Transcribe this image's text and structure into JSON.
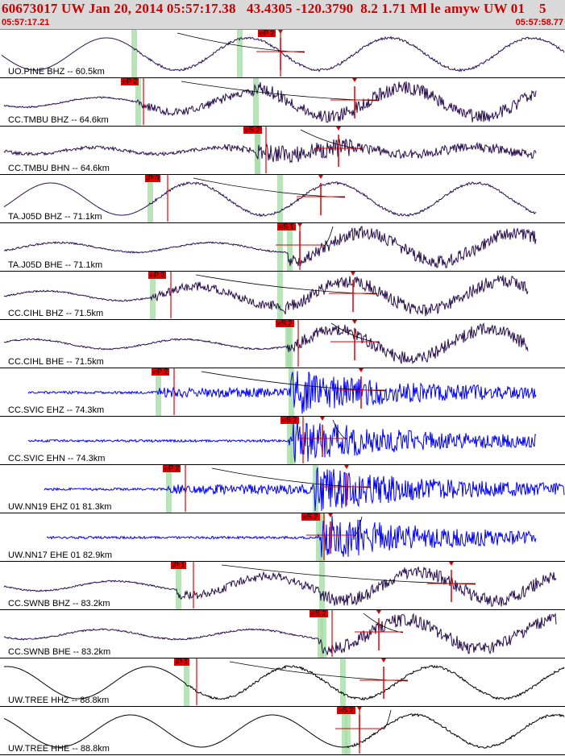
{
  "header": {
    "title": "60673017 UW Jan 20, 2014 05:57:17.38   43.4305 -120.3790  8.2 1.71 Ml le amyw UW 01    5",
    "time_start": "05:57:17.21",
    "time_end": "05:57:58.77"
  },
  "colors": {
    "header_bg": "#d9d9d9",
    "title": "#cc0000",
    "trace_dark": "#2a1050",
    "trace_blue": "#0000ff",
    "trace_black": "#000000",
    "pick": "#e00000",
    "green_band": "#a8dca8"
  },
  "traces": [
    {
      "label": "UO.PINE BHZ -- 60.5km",
      "pick": "eP 2",
      "kind": "long",
      "color": "dark"
    },
    {
      "label": "CC.TMBU BHZ -- 64.6km",
      "pick": "eP 2",
      "kind": "mixed",
      "color": "dark"
    },
    {
      "label": "CC.TMBU BHN -- 64.6km",
      "pick": "eS 2",
      "kind": "noise",
      "color": "dark"
    },
    {
      "label": "TA.J05D BHZ -- 71.1km",
      "pick": "iP 0",
      "kind": "long",
      "color": "dark"
    },
    {
      "label": "TA.J05D BHE -- 71.1km",
      "pick": "eS 1",
      "kind": "mixed",
      "color": "dark"
    },
    {
      "label": "CC.CIHL BHZ -- 71.5km",
      "pick": "eP 2",
      "kind": "mixed",
      "color": "dark"
    },
    {
      "label": "CC.CIHL BHE -- 71.5km",
      "pick": "eS 2",
      "kind": "mixed",
      "color": "dark"
    },
    {
      "label": "CC.SVIC EHZ -- 74.3km",
      "pick": "eP 2",
      "kind": "burst",
      "color": "blue"
    },
    {
      "label": "CC.SVIC EHN -- 74.3km",
      "pick": "eS 2",
      "kind": "burst",
      "color": "blue"
    },
    {
      "label": "UW.NN19 EHZ 01 81.3km",
      "pick": "eP 2",
      "kind": "burst",
      "color": "blue"
    },
    {
      "label": "UW.NN17 EHE 01 82.9km",
      "pick": "eS 2",
      "kind": "burst",
      "color": "blue"
    },
    {
      "label": "CC.SWNB BHZ -- 83.2km",
      "pick": "iP 1",
      "kind": "mixed",
      "color": "dark"
    },
    {
      "label": "CC.SWNB BHE -- 83.2km",
      "pick": "eS 2",
      "kind": "mixed",
      "color": "dark"
    },
    {
      "label": "UW.TREE HHZ -- 88.8km",
      "pick": "iP 1",
      "kind": "long",
      "color": "black"
    },
    {
      "label": "UW.TREE HHE -- 88.8km",
      "pick": "eS 2",
      "kind": "long",
      "color": "black"
    }
  ]
}
